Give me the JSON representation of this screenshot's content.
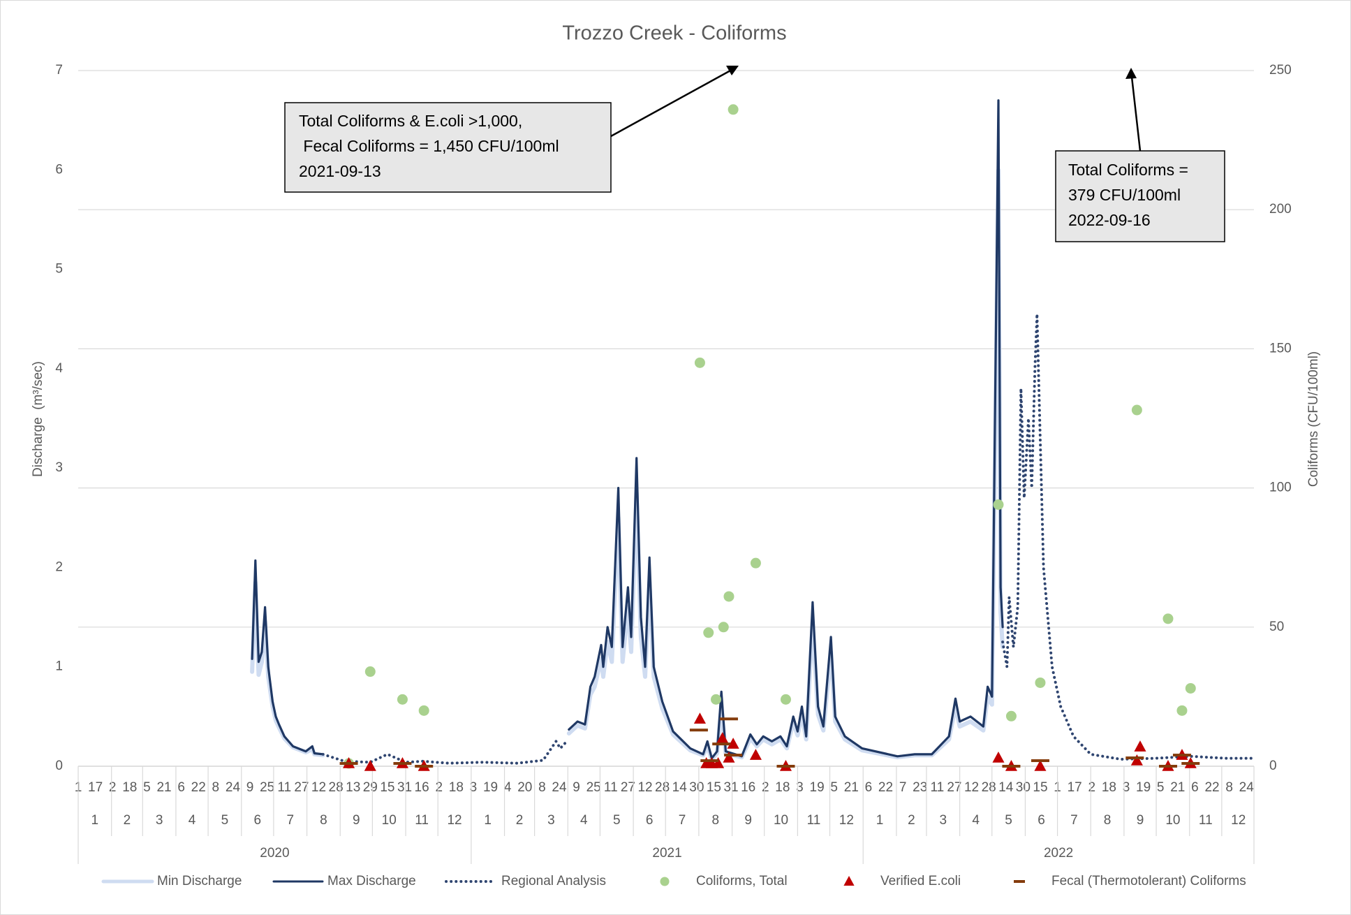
{
  "chart_data": {
    "type": "combo",
    "title": "Trozzo Creek - Coliforms",
    "y_label": "Discharge  (m³/sec)",
    "y2_label": "Coliforms (CFU/100ml)",
    "ylim": [
      0,
      7
    ],
    "yticks": [
      0,
      1,
      2,
      3,
      4,
      5,
      6,
      7
    ],
    "y2lim": [
      0,
      250
    ],
    "y2ticks": [
      0,
      50,
      100,
      150,
      200,
      250
    ],
    "grid": "y2",
    "legend": "bottom",
    "xlim": [
      "2020-01-01",
      "2022-12-31"
    ],
    "xticks": [
      {
        "value": "2020-01-01",
        "label": "1"
      },
      {
        "value": "2020-01-17",
        "label": "17"
      },
      {
        "value": "2020-02-02",
        "label": "2"
      },
      {
        "value": "2020-02-18",
        "label": "18"
      },
      {
        "value": "2020-03-05",
        "label": "5"
      },
      {
        "value": "2020-03-21",
        "label": "21"
      },
      {
        "value": "2020-04-06",
        "label": "6"
      },
      {
        "value": "2020-04-22",
        "label": "22"
      },
      {
        "value": "2020-05-08",
        "label": "8"
      },
      {
        "value": "2020-05-24",
        "label": "24"
      },
      {
        "value": "2020-06-09",
        "label": "9"
      },
      {
        "value": "2020-06-25",
        "label": "25"
      },
      {
        "value": "2020-07-11",
        "label": "11"
      },
      {
        "value": "2020-07-27",
        "label": "27"
      },
      {
        "value": "2020-08-12",
        "label": "12"
      },
      {
        "value": "2020-08-28",
        "label": "28"
      },
      {
        "value": "2020-09-13",
        "label": "13"
      },
      {
        "value": "2020-09-29",
        "label": "29"
      },
      {
        "value": "2020-10-15",
        "label": "15"
      },
      {
        "value": "2020-10-31",
        "label": "31"
      },
      {
        "value": "2020-11-16",
        "label": "16"
      },
      {
        "value": "2020-12-02",
        "label": "2"
      },
      {
        "value": "2020-12-18",
        "label": "18"
      },
      {
        "value": "2021-01-03",
        "label": "3"
      },
      {
        "value": "2021-01-19",
        "label": "19"
      },
      {
        "value": "2021-02-04",
        "label": "4"
      },
      {
        "value": "2021-02-20",
        "label": "20"
      },
      {
        "value": "2021-03-08",
        "label": "8"
      },
      {
        "value": "2021-03-24",
        "label": "24"
      },
      {
        "value": "2021-04-09",
        "label": "9"
      },
      {
        "value": "2021-04-25",
        "label": "25"
      },
      {
        "value": "2021-05-11",
        "label": "11"
      },
      {
        "value": "2021-05-27",
        "label": "27"
      },
      {
        "value": "2021-06-12",
        "label": "12"
      },
      {
        "value": "2021-06-28",
        "label": "28"
      },
      {
        "value": "2021-07-14",
        "label": "14"
      },
      {
        "value": "2021-07-30",
        "label": "30"
      },
      {
        "value": "2021-08-15",
        "label": "15"
      },
      {
        "value": "2021-08-31",
        "label": "31"
      },
      {
        "value": "2021-09-16",
        "label": "16"
      },
      {
        "value": "2021-10-02",
        "label": "2"
      },
      {
        "value": "2021-10-18",
        "label": "18"
      },
      {
        "value": "2021-11-03",
        "label": "3"
      },
      {
        "value": "2021-11-19",
        "label": "19"
      },
      {
        "value": "2021-12-05",
        "label": "5"
      },
      {
        "value": "2021-12-21",
        "label": "21"
      },
      {
        "value": "2022-01-06",
        "label": "6"
      },
      {
        "value": "2022-01-22",
        "label": "22"
      },
      {
        "value": "2022-02-07",
        "label": "7"
      },
      {
        "value": "2022-02-23",
        "label": "23"
      },
      {
        "value": "2022-03-11",
        "label": "11"
      },
      {
        "value": "2022-03-27",
        "label": "27"
      },
      {
        "value": "2022-04-12",
        "label": "12"
      },
      {
        "value": "2022-04-28",
        "label": "28"
      },
      {
        "value": "2022-05-14",
        "label": "14"
      },
      {
        "value": "2022-05-30",
        "label": "30"
      },
      {
        "value": "2022-06-15",
        "label": "15"
      },
      {
        "value": "2022-07-01",
        "label": "1"
      },
      {
        "value": "2022-07-17",
        "label": "17"
      },
      {
        "value": "2022-08-02",
        "label": "2"
      },
      {
        "value": "2022-08-18",
        "label": "18"
      },
      {
        "value": "2022-09-03",
        "label": "3"
      },
      {
        "value": "2022-09-19",
        "label": "19"
      },
      {
        "value": "2022-10-05",
        "label": "5"
      },
      {
        "value": "2022-10-21",
        "label": "21"
      },
      {
        "value": "2022-11-06",
        "label": "6"
      },
      {
        "value": "2022-11-22",
        "label": "22"
      },
      {
        "value": "2022-12-08",
        "label": "8"
      },
      {
        "value": "2022-12-24",
        "label": "24"
      }
    ],
    "months": [
      "1",
      "2",
      "3",
      "4",
      "5",
      "6",
      "7",
      "8",
      "9",
      "10",
      "11",
      "12"
    ],
    "years": [
      "2020",
      "2021",
      "2022"
    ],
    "series": [
      {
        "name": "Min Discharge",
        "color": "#cfdcf1",
        "style": "line",
        "axis": "y",
        "x": [
          "2020-06-11",
          "2020-06-14",
          "2020-06-17",
          "2020-06-20",
          "2020-06-23",
          "2020-06-26",
          "2020-06-30",
          "2020-07-03",
          "2020-07-06",
          "2020-07-11",
          "2020-07-19",
          "2020-07-31",
          "2020-08-06",
          "2020-08-08",
          "2020-08-16",
          "2021-01-01",
          "2021-04-02",
          "2021-04-10",
          "2021-04-17",
          "2021-04-22",
          "2021-04-26",
          "2021-05-02",
          "2021-05-04",
          "2021-05-08",
          "2021-05-12",
          "2021-05-18",
          "2021-05-22",
          "2021-05-27",
          "2021-05-30",
          "2021-06-04",
          "2021-06-08",
          "2021-06-12",
          "2021-06-16",
          "2021-06-20",
          "2021-06-28",
          "2021-07-08",
          "2021-07-24",
          "2021-08-05",
          "2021-08-09",
          "2021-08-13",
          "2021-08-18",
          "2021-08-22",
          "2021-08-26",
          "2021-09-10",
          "2021-09-18",
          "2021-09-24",
          "2021-09-30",
          "2021-10-08",
          "2021-10-16",
          "2021-10-22",
          "2021-10-28",
          "2021-11-01",
          "2021-11-05",
          "2021-11-09",
          "2021-11-15",
          "2021-11-20",
          "2021-11-25",
          "2021-12-02",
          "2021-12-06",
          "2021-12-15",
          "2021-12-31",
          "2022-02-02",
          "2022-02-18",
          "2022-03-06",
          "2022-03-22",
          "2022-03-28",
          "2022-04-01",
          "2022-04-11",
          "2022-04-23",
          "2022-04-27",
          "2022-05-01",
          "2022-05-07",
          "2022-05-09",
          "2022-05-11"
        ],
        "values": [
          0.95,
          1.85,
          0.92,
          1.05,
          1.45,
          0.9,
          0.6,
          0.46,
          0.39,
          0.28,
          0.19,
          0.14,
          0.17,
          0.12,
          0.11,
          null,
          0.33,
          0.41,
          0.38,
          0.72,
          0.8,
          1.08,
          0.9,
          1.25,
          1.05,
          2.5,
          1.05,
          1.6,
          1.15,
          2.75,
          1.3,
          0.9,
          1.85,
          0.9,
          0.58,
          0.32,
          0.16,
          0.11,
          0.2,
          0.07,
          0.13,
          0.6,
          0.13,
          0.09,
          0.28,
          0.2,
          0.27,
          0.22,
          0.27,
          0.18,
          0.44,
          0.31,
          0.52,
          0.27,
          1.45,
          0.52,
          0.36,
          1.15,
          0.45,
          0.27,
          0.16,
          0.09,
          0.11,
          0.11,
          0.27,
          0.6,
          0.4,
          0.45,
          0.36,
          0.7,
          0.62,
          6.0,
          1.55,
          1.2
        ]
      },
      {
        "name": "Max Discharge",
        "color": "#1f3864",
        "style": "line",
        "axis": "y",
        "x": [
          "2020-06-11",
          "2020-06-14",
          "2020-06-17",
          "2020-06-20",
          "2020-06-23",
          "2020-06-26",
          "2020-06-30",
          "2020-07-03",
          "2020-07-06",
          "2020-07-11",
          "2020-07-19",
          "2020-07-31",
          "2020-08-06",
          "2020-08-08",
          "2020-08-16",
          "2021-01-01",
          "2021-04-02",
          "2021-04-10",
          "2021-04-17",
          "2021-04-22",
          "2021-04-26",
          "2021-05-02",
          "2021-05-04",
          "2021-05-08",
          "2021-05-12",
          "2021-05-18",
          "2021-05-22",
          "2021-05-27",
          "2021-05-30",
          "2021-06-04",
          "2021-06-08",
          "2021-06-12",
          "2021-06-16",
          "2021-06-20",
          "2021-06-28",
          "2021-07-08",
          "2021-07-24",
          "2021-08-05",
          "2021-08-09",
          "2021-08-13",
          "2021-08-18",
          "2021-08-22",
          "2021-08-26",
          "2021-09-10",
          "2021-09-18",
          "2021-09-24",
          "2021-09-30",
          "2021-10-08",
          "2021-10-16",
          "2021-10-22",
          "2021-10-28",
          "2021-11-01",
          "2021-11-05",
          "2021-11-09",
          "2021-11-15",
          "2021-11-20",
          "2021-11-25",
          "2021-12-02",
          "2021-12-06",
          "2021-12-15",
          "2021-12-31",
          "2022-02-02",
          "2022-02-18",
          "2022-03-06",
          "2022-03-22",
          "2022-03-28",
          "2022-04-01",
          "2022-04-11",
          "2022-04-23",
          "2022-04-27",
          "2022-05-01",
          "2022-05-07",
          "2022-05-09",
          "2022-05-11"
        ],
        "values": [
          1.08,
          2.07,
          1.05,
          1.15,
          1.6,
          1.0,
          0.65,
          0.5,
          0.42,
          0.3,
          0.2,
          0.15,
          0.2,
          0.13,
          0.12,
          null,
          0.37,
          0.45,
          0.42,
          0.8,
          0.9,
          1.22,
          1.0,
          1.4,
          1.2,
          2.8,
          1.2,
          1.8,
          1.3,
          3.1,
          1.5,
          1.0,
          2.1,
          1.0,
          0.65,
          0.35,
          0.18,
          0.12,
          0.25,
          0.08,
          0.15,
          0.75,
          0.15,
          0.1,
          0.32,
          0.22,
          0.3,
          0.25,
          0.3,
          0.2,
          0.5,
          0.35,
          0.6,
          0.3,
          1.65,
          0.6,
          0.4,
          1.3,
          0.5,
          0.3,
          0.18,
          0.1,
          0.12,
          0.12,
          0.3,
          0.68,
          0.45,
          0.5,
          0.4,
          0.8,
          0.7,
          6.7,
          1.8,
          1.4
        ]
      },
      {
        "name": "Regional Analysis",
        "color": "#2f4570",
        "style": "dotted",
        "axis": "y",
        "x": [
          "2020-08-16",
          "2020-09-05",
          "2020-09-29",
          "2020-10-15",
          "2020-11-01",
          "2020-11-17",
          "2020-12-11",
          "2021-01-12",
          "2021-02-13",
          "2021-03-09",
          "2021-03-21",
          "2021-03-25",
          "2021-03-31",
          "2021-10-01",
          "2022-05-11",
          "2022-05-15",
          "2022-05-17",
          "2022-05-21",
          "2022-05-25",
          "2022-05-28",
          "2022-05-31",
          "2022-06-04",
          "2022-06-07",
          "2022-06-10",
          "2022-06-12",
          "2022-06-18",
          "2022-06-26",
          "2022-07-04",
          "2022-07-16",
          "2022-08-01",
          "2022-08-29",
          "2022-10-01",
          "2022-11-02",
          "2022-12-04",
          "2022-12-31"
        ],
        "values": [
          0.12,
          0.05,
          0.04,
          0.12,
          0.04,
          0.05,
          0.03,
          0.04,
          0.03,
          0.06,
          0.25,
          0.18,
          0.25,
          null,
          1.25,
          1.0,
          1.7,
          1.2,
          1.6,
          3.8,
          2.7,
          3.5,
          2.8,
          4.0,
          4.55,
          2.0,
          1.0,
          0.6,
          0.3,
          0.12,
          0.07,
          0.08,
          0.1,
          0.08,
          0.08
        ]
      },
      {
        "name": "Coliforms, Total",
        "color": "#a9d18e",
        "style": "circle",
        "axis": "y2",
        "x": [
          "2020-09-09",
          "2020-09-29",
          "2020-10-29",
          "2020-11-18",
          "2021-08-02",
          "2021-08-10",
          "2021-08-17",
          "2021-08-24",
          "2021-08-29",
          "2021-09-02",
          "2021-09-23",
          "2021-10-21",
          "2022-05-07",
          "2022-05-19",
          "2022-06-15",
          "2022-09-13",
          "2022-10-12",
          "2022-10-25",
          "2022-11-02"
        ],
        "values": [
          1,
          34,
          24,
          20,
          145,
          48,
          24,
          50,
          61,
          236,
          73,
          24,
          94,
          18,
          30,
          128,
          53,
          20,
          28
        ]
      },
      {
        "name": "Verified E.coli",
        "color": "#c00000",
        "style": "triangle",
        "axis": "y2",
        "x": [
          "2020-09-09",
          "2020-09-29",
          "2020-10-29",
          "2020-11-18",
          "2021-08-02",
          "2021-08-08",
          "2021-08-13",
          "2021-08-19",
          "2021-08-23",
          "2021-08-29",
          "2021-09-02",
          "2021-09-23",
          "2021-10-21",
          "2022-05-07",
          "2022-05-19",
          "2022-06-15",
          "2022-09-13",
          "2022-09-16",
          "2022-10-12",
          "2022-10-25",
          "2022-11-02"
        ],
        "values": [
          1,
          0,
          1,
          0,
          17,
          1,
          1,
          1,
          10,
          3,
          8,
          4,
          0,
          3,
          0,
          0,
          2,
          7,
          0,
          4,
          1
        ]
      },
      {
        "name": "Fecal (Thermotolerant) Coliforms",
        "color": "#843c0c",
        "style": "dash",
        "axis": "y2",
        "x": [
          "2020-09-09",
          "2020-10-29",
          "2020-11-18",
          "2021-08-01",
          "2021-08-11",
          "2021-08-22",
          "2021-08-29",
          "2021-09-02",
          "2021-10-21",
          "2022-05-19",
          "2022-06-15",
          "2022-09-11",
          "2022-10-12",
          "2022-10-25",
          "2022-11-02"
        ],
        "values": [
          1,
          1,
          0,
          13,
          2,
          8,
          17,
          4,
          0,
          0,
          2,
          3,
          0,
          4,
          1
        ]
      }
    ],
    "annotations": [
      [
        "Total Coliforms & E.coli >1,000,",
        " Fecal Coliforms = 1,450 CFU/100ml",
        "2021-09-13"
      ],
      [
        "Total Coliforms =",
        "379 CFU/100ml",
        "2022-09-16"
      ]
    ]
  }
}
